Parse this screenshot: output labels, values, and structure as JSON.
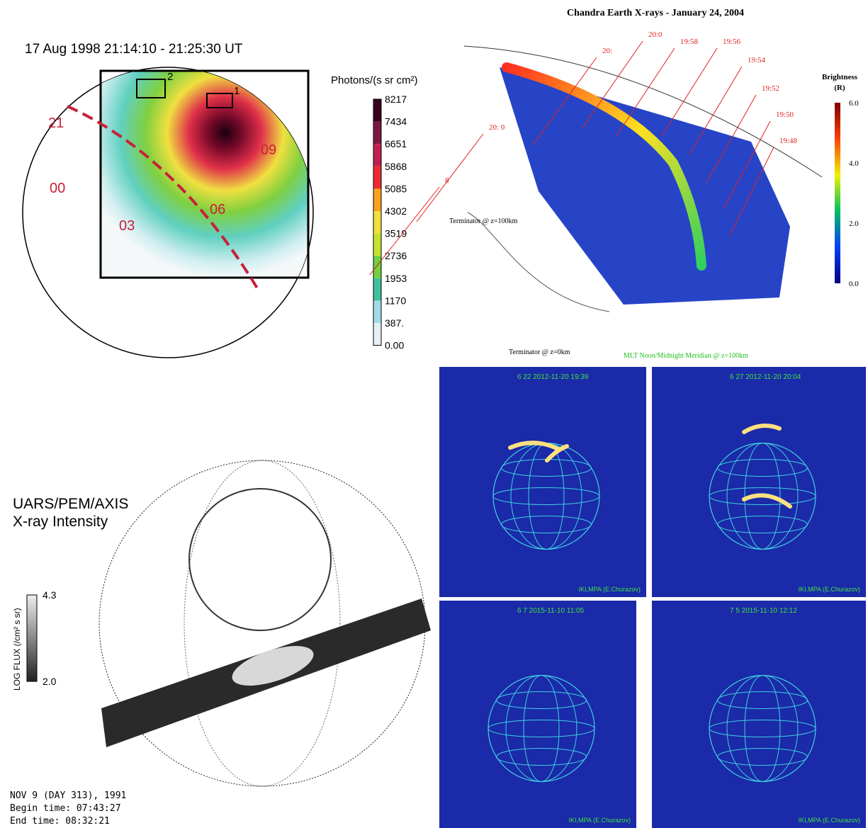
{
  "panels": [
    {
      "title": "17 Aug 1998 21:14:10 - 21:25:30 UT",
      "colorbar_title": "Photons/(s sr cm²)",
      "colorbar_labels": [
        "8217",
        "7434",
        "6651",
        "5868",
        "5085",
        "4302",
        "3519",
        "2736",
        "1953",
        "1170",
        "387.",
        "0.00"
      ],
      "map_labels": [
        "21",
        "00",
        "03",
        "06",
        "09",
        "1",
        "2"
      ]
    },
    {
      "title": "Chandra Earth X-rays - January 24, 2004",
      "colorbar_title": "Brightness",
      "colorbar_unit": "(R)",
      "colorbar_labels": [
        "6.0",
        "4.0",
        "2.0",
        "0.0"
      ],
      "time_labels": [
        "19:48",
        "19:50",
        "19:52",
        "19:54",
        "19:56",
        "19:58",
        "20:0",
        "20:",
        "20: 0",
        "8"
      ],
      "annotations": [
        "Terminator @ z=100km",
        "Terminator @ z=0km",
        "MLT Noon/Midnight Meridian @ z=100km"
      ]
    },
    {
      "title": "UARS/PEM/AXIS",
      "subtitle": "X-ray Intensity",
      "colorbar_title": "LOG FLUX (/cm² s sr)",
      "colorbar_labels": [
        "4.3",
        "2.0"
      ],
      "footer": [
        "NOV 9 (DAY 313), 1991",
        "Begin time:  07:43:27",
        "End time:    08:32:21"
      ]
    },
    {
      "frames": [
        {
          "header": "6  22  2012-11-20 19:39",
          "credit": "IKI,MPA (E.Churazov)"
        },
        {
          "header": "6  27  2012-11-20 20:04",
          "credit": "IKI,MPA (E.Churazov)"
        },
        {
          "header": "6   7  2015-11-10 11:05",
          "credit": "IKI,MPA (E.Churazov)"
        },
        {
          "header": "7   5  2015-11-10 12:12",
          "credit": "IKI,MPA (E.Churazov)"
        }
      ]
    }
  ]
}
